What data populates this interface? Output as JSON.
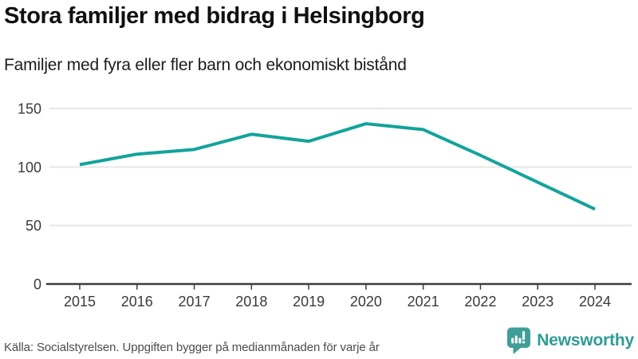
{
  "header": {
    "title": "Stora familjer med bidrag i Helsingborg",
    "subtitle": "Familjer med fyra eller fler barn och ekonomiskt bistånd"
  },
  "footer": {
    "source": "Källa: Socialstyrelsen. Uppgiften bygger på medianmånaden för varje år",
    "brand": "Newsworthy"
  },
  "colors": {
    "line": "#12a39b",
    "grid": "#e6e6e6",
    "axis": "#3d3d3d",
    "tick_label": "#3a3a3a",
    "logo_icon": "#3f9e98",
    "logo_bars": "#ffffff",
    "logo_text": "#2e9c95"
  },
  "chart_data": {
    "type": "line",
    "x": [
      2015,
      2016,
      2017,
      2018,
      2019,
      2020,
      2021,
      2022,
      2023,
      2024
    ],
    "values": [
      102,
      111,
      115,
      128,
      122,
      137,
      132,
      110,
      87,
      64
    ],
    "title": "Stora familjer med bidrag i Helsingborg",
    "subtitle": "Familjer med fyra eller fler barn och ekonomiskt bistånd",
    "xlabel": "",
    "ylabel": "",
    "ylim": [
      0,
      150
    ],
    "yticks": [
      0,
      50,
      100,
      150
    ],
    "grid": "horizontal",
    "legend": "none",
    "line_color": "#12a39b"
  }
}
